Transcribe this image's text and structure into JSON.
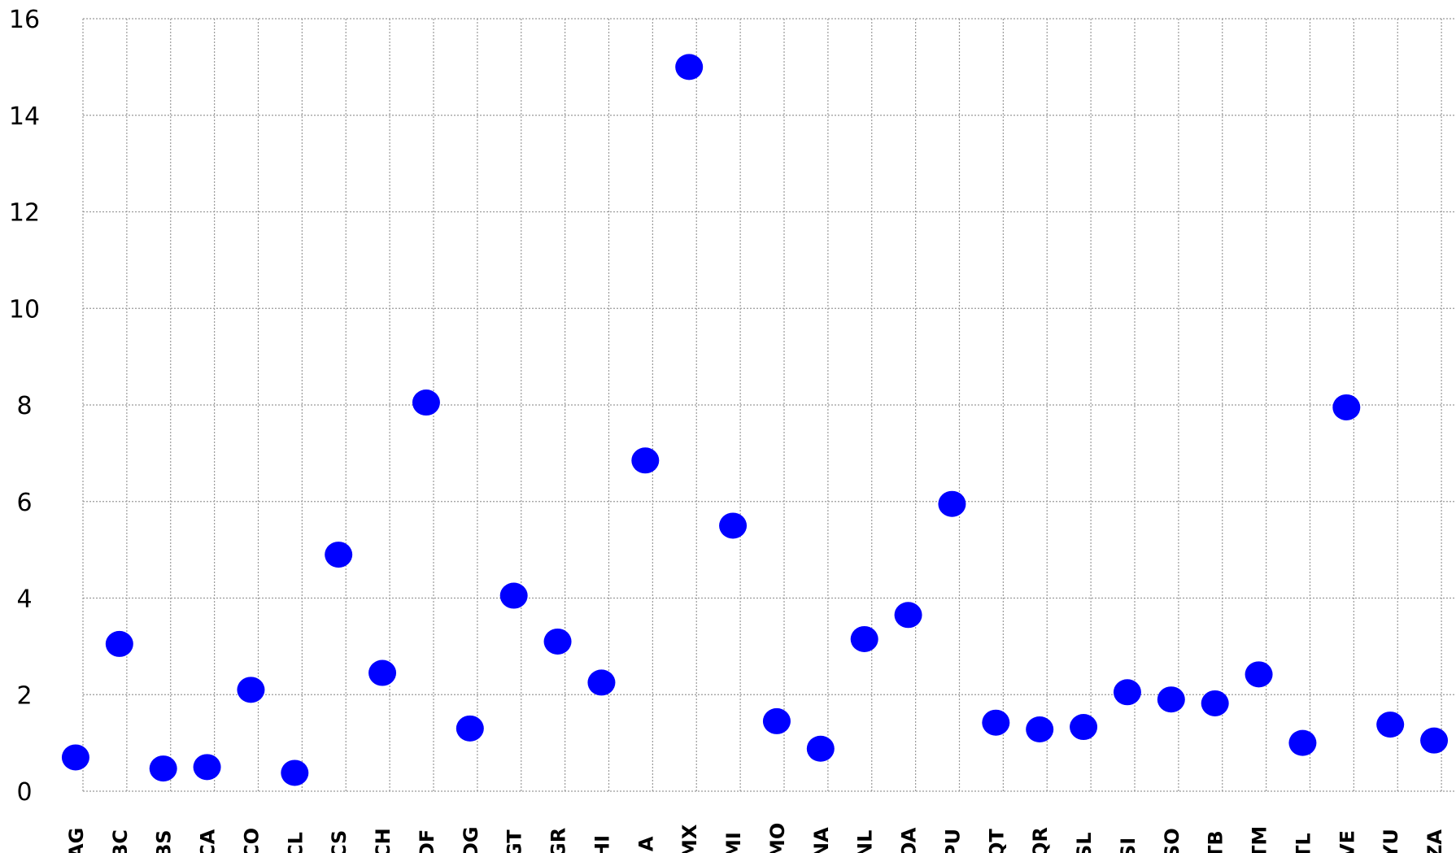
{
  "chart_data": {
    "type": "scatter",
    "title": "",
    "xlabel": "",
    "ylabel": "",
    "ylim": [
      0,
      16
    ],
    "yticks": [
      "0",
      "2",
      "4",
      "6",
      "8",
      "10",
      "12",
      "14",
      "16"
    ],
    "grid": true,
    "marker_color": "#0000ff",
    "categories": [
      "AG",
      "BC",
      "BS",
      "CA",
      "CO",
      "CL",
      "CS",
      "CH",
      "DF",
      "DG",
      "GT",
      "GR",
      "HI",
      "JA",
      "MX",
      "MI",
      "MO",
      "NA",
      "NL",
      "OA",
      "PU",
      "QT",
      "QR",
      "SL",
      "SI",
      "SO",
      "TB",
      "TM",
      "TL",
      "VE",
      "YU",
      "ZA"
    ],
    "values": [
      0.7,
      3.05,
      0.47,
      0.5,
      2.1,
      0.38,
      4.9,
      2.45,
      8.05,
      1.3,
      4.05,
      3.1,
      2.25,
      6.85,
      15.0,
      5.5,
      1.45,
      0.88,
      3.15,
      3.65,
      5.95,
      1.42,
      1.28,
      1.33,
      2.05,
      1.9,
      1.82,
      2.42,
      1.0,
      7.95,
      1.38,
      1.05
    ]
  }
}
